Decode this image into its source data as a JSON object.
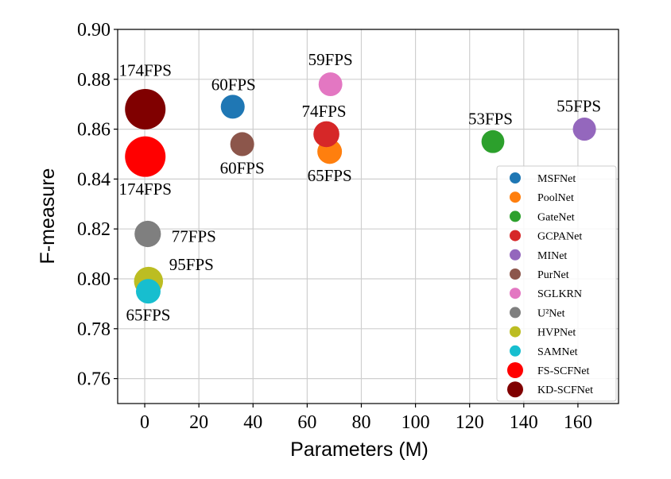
{
  "chart_data": {
    "type": "scatter",
    "xlabel": "Parameters (M)",
    "ylabel": "F-measure",
    "xlim": [
      -10,
      175
    ],
    "ylim": [
      0.75,
      0.9
    ],
    "xticks": [
      "0",
      "20",
      "40",
      "60",
      "80",
      "100",
      "120",
      "140",
      "160"
    ],
    "yticks": [
      "0.76",
      "0.78",
      "0.80",
      "0.82",
      "0.84",
      "0.86",
      "0.88",
      "0.90"
    ],
    "grid": true,
    "legend_position": "lower-right",
    "series": [
      {
        "name": "MSFNet",
        "color": "#1f77b4",
        "x": 32.5,
        "y": 0.869,
        "fps_label": "60FPS",
        "fps": 60
      },
      {
        "name": "PoolNet",
        "color": "#ff7f0e",
        "x": 68.3,
        "y": 0.851,
        "fps_label": "65FPS",
        "fps": 65
      },
      {
        "name": "GateNet",
        "color": "#2ca02c",
        "x": 128.6,
        "y": 0.855,
        "fps_label": "53FPS",
        "fps": 53
      },
      {
        "name": "GCPANet",
        "color": "#d62728",
        "x": 67.1,
        "y": 0.858,
        "fps_label": "74FPS",
        "fps": 74
      },
      {
        "name": "MINet",
        "color": "#9467bd",
        "x": 162.4,
        "y": 0.86,
        "fps_label": "55FPS",
        "fps": 55
      },
      {
        "name": "PurNet",
        "color": "#8c564b",
        "x": 36.0,
        "y": 0.854,
        "fps_label": "60FPS",
        "fps": 60
      },
      {
        "name": "SGLKRN",
        "color": "#e377c2",
        "x": 68.6,
        "y": 0.878,
        "fps_label": "59FPS",
        "fps": 59
      },
      {
        "name": "U²Net",
        "color": "#7f7f7f",
        "x": 1.1,
        "y": 0.818,
        "fps_label": "77FPS",
        "fps": 77
      },
      {
        "name": "HVPNet",
        "color": "#bcbd22",
        "x": 1.4,
        "y": 0.799,
        "fps_label": "95FPS",
        "fps": 95
      },
      {
        "name": "SAMNet",
        "color": "#17becf",
        "x": 1.3,
        "y": 0.795,
        "fps_label": "65FPS",
        "fps": 65
      },
      {
        "name": "FS-SCFNet",
        "color": "#ff0000",
        "x": 0.2,
        "y": 0.849,
        "fps_label": "174FPS",
        "fps": 174
      },
      {
        "name": "KD-SCFNet",
        "color": "#800000",
        "x": 0.2,
        "y": 0.868,
        "fps_label": "174FPS",
        "fps": 174
      }
    ]
  }
}
